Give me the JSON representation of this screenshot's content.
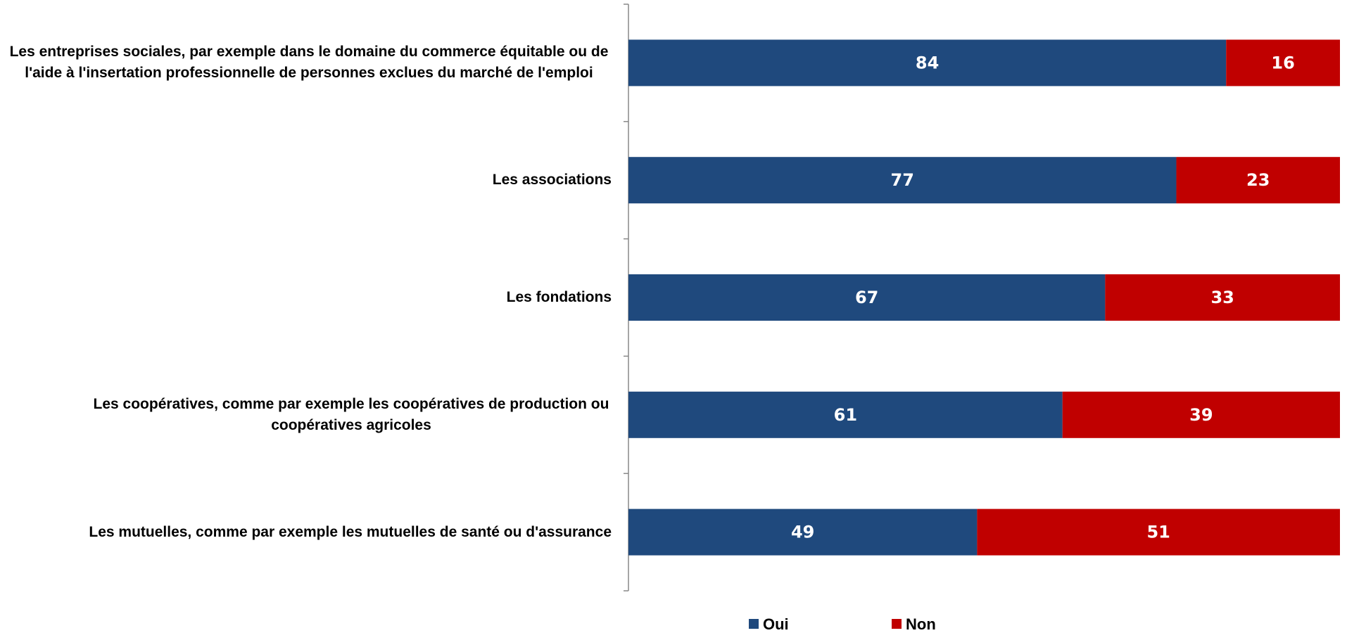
{
  "chart_data": {
    "type": "bar",
    "orientation": "horizontal",
    "stacked": true,
    "categories": [
      "Les entreprises sociales, par exemple dans le domaine du commerce équitable ou de l'aide à l'insertation professionnelle de personnes exclues du marché de l'emploi",
      "Les associations",
      "Les fondations",
      "Les coopératives, comme par exemple les coopératives de production ou coopératives agricoles",
      "Les mutuelles, comme par exemple les mutuelles de santé ou d'assurance"
    ],
    "series": [
      {
        "name": "Oui",
        "color": "#1f497d",
        "values": [
          84,
          77,
          67,
          61,
          49
        ]
      },
      {
        "name": "Non",
        "color": "#c00000",
        "values": [
          16,
          23,
          33,
          39,
          51
        ]
      }
    ],
    "xlim": [
      0,
      100
    ],
    "legend": "bottom"
  }
}
